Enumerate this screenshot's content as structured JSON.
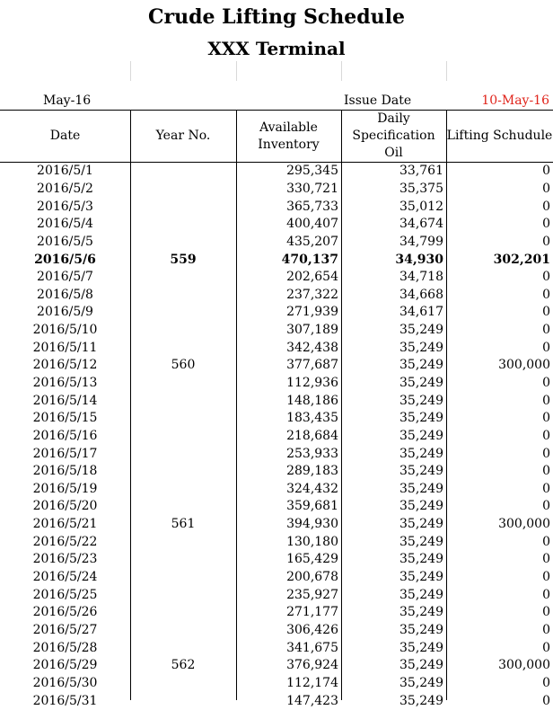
{
  "titles": {
    "main": "Crude Lifting Schedule",
    "sub": "XXX Terminal"
  },
  "meta": {
    "month": "May-16",
    "issue_label": "Issue Date",
    "issue_date": "10-May-16"
  },
  "colors": {
    "issue_date": "#e0231a"
  },
  "table": {
    "headers": {
      "date": "Date",
      "year_no": "Year No.",
      "inventory_line1": "Available",
      "inventory_line2": "Inventory",
      "spec_line1": "Daily",
      "spec_line2": "Specification Oil",
      "lifting": "Lifting Schudule"
    },
    "rows": [
      {
        "date": "2016/5/1",
        "year": "",
        "inventory": "295,345",
        "spec": "33,761",
        "lifting": "0"
      },
      {
        "date": "2016/5/2",
        "year": "",
        "inventory": "330,721",
        "spec": "35,375",
        "lifting": "0"
      },
      {
        "date": "2016/5/3",
        "year": "",
        "inventory": "365,733",
        "spec": "35,012",
        "lifting": "0"
      },
      {
        "date": "2016/5/4",
        "year": "",
        "inventory": "400,407",
        "spec": "34,674",
        "lifting": "0"
      },
      {
        "date": "2016/5/5",
        "year": "",
        "inventory": "435,207",
        "spec": "34,799",
        "lifting": "0"
      },
      {
        "date": "2016/5/6",
        "year": "559",
        "inventory": "470,137",
        "spec": "34,930",
        "lifting": "302,201",
        "bold": true
      },
      {
        "date": "2016/5/7",
        "year": "",
        "inventory": "202,654",
        "spec": "34,718",
        "lifting": "0"
      },
      {
        "date": "2016/5/8",
        "year": "",
        "inventory": "237,322",
        "spec": "34,668",
        "lifting": "0"
      },
      {
        "date": "2016/5/9",
        "year": "",
        "inventory": "271,939",
        "spec": "34,617",
        "lifting": "0"
      },
      {
        "date": "2016/5/10",
        "year": "",
        "inventory": "307,189",
        "spec": "35,249",
        "lifting": "0"
      },
      {
        "date": "2016/5/11",
        "year": "",
        "inventory": "342,438",
        "spec": "35,249",
        "lifting": "0"
      },
      {
        "date": "2016/5/12",
        "year": "560",
        "inventory": "377,687",
        "spec": "35,249",
        "lifting": "300,000"
      },
      {
        "date": "2016/5/13",
        "year": "",
        "inventory": "112,936",
        "spec": "35,249",
        "lifting": "0"
      },
      {
        "date": "2016/5/14",
        "year": "",
        "inventory": "148,186",
        "spec": "35,249",
        "lifting": "0"
      },
      {
        "date": "2016/5/15",
        "year": "",
        "inventory": "183,435",
        "spec": "35,249",
        "lifting": "0"
      },
      {
        "date": "2016/5/16",
        "year": "",
        "inventory": "218,684",
        "spec": "35,249",
        "lifting": "0"
      },
      {
        "date": "2016/5/17",
        "year": "",
        "inventory": "253,933",
        "spec": "35,249",
        "lifting": "0"
      },
      {
        "date": "2016/5/18",
        "year": "",
        "inventory": "289,183",
        "spec": "35,249",
        "lifting": "0"
      },
      {
        "date": "2016/5/19",
        "year": "",
        "inventory": "324,432",
        "spec": "35,249",
        "lifting": "0"
      },
      {
        "date": "2016/5/20",
        "year": "",
        "inventory": "359,681",
        "spec": "35,249",
        "lifting": "0"
      },
      {
        "date": "2016/5/21",
        "year": "561",
        "inventory": "394,930",
        "spec": "35,249",
        "lifting": "300,000"
      },
      {
        "date": "2016/5/22",
        "year": "",
        "inventory": "130,180",
        "spec": "35,249",
        "lifting": "0"
      },
      {
        "date": "2016/5/23",
        "year": "",
        "inventory": "165,429",
        "spec": "35,249",
        "lifting": "0"
      },
      {
        "date": "2016/5/24",
        "year": "",
        "inventory": "200,678",
        "spec": "35,249",
        "lifting": "0"
      },
      {
        "date": "2016/5/25",
        "year": "",
        "inventory": "235,927",
        "spec": "35,249",
        "lifting": "0"
      },
      {
        "date": "2016/5/26",
        "year": "",
        "inventory": "271,177",
        "spec": "35,249",
        "lifting": "0"
      },
      {
        "date": "2016/5/27",
        "year": "",
        "inventory": "306,426",
        "spec": "35,249",
        "lifting": "0"
      },
      {
        "date": "2016/5/28",
        "year": "",
        "inventory": "341,675",
        "spec": "35,249",
        "lifting": "0"
      },
      {
        "date": "2016/5/29",
        "year": "562",
        "inventory": "376,924",
        "spec": "35,249",
        "lifting": "300,000"
      },
      {
        "date": "2016/5/30",
        "year": "",
        "inventory": "112,174",
        "spec": "35,249",
        "lifting": "0"
      },
      {
        "date": "2016/5/31",
        "year": "",
        "inventory": "147,423",
        "spec": "35,249",
        "lifting": "0"
      }
    ]
  }
}
